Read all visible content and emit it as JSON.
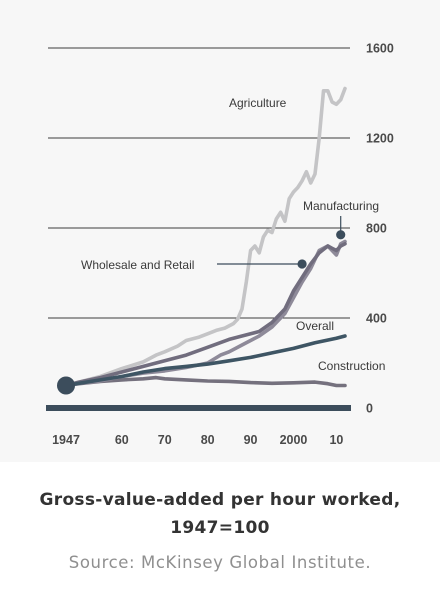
{
  "chart_data": {
    "type": "line",
    "xlim": [
      1947,
      2012
    ],
    "ylim": [
      0,
      1600
    ],
    "x_ticks": [
      {
        "value": 1947,
        "label": "1947"
      },
      {
        "value": 1960,
        "label": "60"
      },
      {
        "value": 1970,
        "label": "70"
      },
      {
        "value": 1980,
        "label": "80"
      },
      {
        "value": 1990,
        "label": "90"
      },
      {
        "value": 2000,
        "label": "2000"
      },
      {
        "value": 2010,
        "label": "10"
      }
    ],
    "y_ticks": [
      {
        "value": 0,
        "label": "0"
      },
      {
        "value": 400,
        "label": "400"
      },
      {
        "value": 800,
        "label": "800"
      },
      {
        "value": 1200,
        "label": "1200"
      },
      {
        "value": 1600,
        "label": "1600"
      }
    ],
    "grid": true,
    "series": [
      {
        "name": "Agriculture",
        "color": "#c4c4c6",
        "x": [
          1947,
          1950,
          1955,
          1960,
          1965,
          1968,
          1970,
          1973,
          1975,
          1978,
          1980,
          1982,
          1984,
          1986,
          1987,
          1988,
          1989,
          1990,
          1991,
          1992,
          1993,
          1994,
          1995,
          1996,
          1997,
          1998,
          1999,
          2000,
          2001,
          2002,
          2003,
          2004,
          2005,
          2006,
          2007,
          2008,
          2009,
          2010,
          2011,
          2012
        ],
        "y": [
          100,
          115,
          140,
          175,
          205,
          235,
          250,
          275,
          300,
          315,
          330,
          345,
          355,
          375,
          395,
          440,
          560,
          700,
          720,
          690,
          760,
          790,
          780,
          840,
          870,
          830,
          930,
          960,
          980,
          1010,
          1050,
          1000,
          1040,
          1200,
          1410,
          1410,
          1360,
          1350,
          1370,
          1420
        ]
      },
      {
        "name": "Manufacturing",
        "color": "#8e8a99",
        "x": [
          1947,
          1950,
          1955,
          1960,
          1965,
          1970,
          1975,
          1980,
          1983,
          1985,
          1988,
          1990,
          1992,
          1995,
          1998,
          2000,
          2002,
          2004,
          2006,
          2008,
          2010,
          2011,
          2012
        ],
        "y": [
          100,
          110,
          120,
          140,
          155,
          165,
          180,
          200,
          235,
          250,
          280,
          300,
          320,
          360,
          420,
          490,
          560,
          620,
          700,
          720,
          680,
          730,
          740
        ]
      },
      {
        "name": "Wholesale and Retail",
        "color": "#716d7e",
        "x": [
          1947,
          1950,
          1955,
          1960,
          1965,
          1970,
          1975,
          1980,
          1985,
          1990,
          1992,
          1995,
          1998,
          2000,
          2002,
          2004,
          2006,
          2008,
          2009,
          2010,
          2011,
          2012
        ],
        "y": [
          100,
          115,
          135,
          160,
          185,
          210,
          235,
          270,
          305,
          330,
          340,
          380,
          440,
          520,
          580,
          640,
          690,
          720,
          710,
          700,
          720,
          730
        ]
      },
      {
        "name": "Overall",
        "color": "#3e5564",
        "x": [
          1947,
          1950,
          1955,
          1960,
          1965,
          1970,
          1975,
          1980,
          1985,
          1990,
          1995,
          2000,
          2005,
          2010,
          2012
        ],
        "y": [
          100,
          110,
          125,
          140,
          160,
          175,
          185,
          195,
          210,
          225,
          245,
          265,
          290,
          310,
          320
        ]
      },
      {
        "name": "Construction",
        "color": "#75717e",
        "x": [
          1947,
          1950,
          1955,
          1960,
          1965,
          1968,
          1970,
          1975,
          1980,
          1985,
          1990,
          1995,
          2000,
          2005,
          2008,
          2010,
          2012
        ],
        "y": [
          100,
          108,
          118,
          125,
          130,
          135,
          130,
          125,
          120,
          118,
          113,
          110,
          112,
          115,
          108,
          100,
          100
        ]
      }
    ],
    "annotations": [
      {
        "text": "Agriculture",
        "series": "Agriculture"
      },
      {
        "text": "Manufacturing",
        "series": "Manufacturing",
        "marker": {
          "x": 2011,
          "y": 770
        }
      },
      {
        "text": "Wholesale and Retail",
        "series": "Wholesale and Retail",
        "marker": {
          "x": 2002,
          "y": 640
        }
      },
      {
        "text": "Overall",
        "series": "Overall"
      },
      {
        "text": "Construction",
        "series": "Construction"
      }
    ],
    "origin_marker": {
      "x": 1947,
      "y": 100
    }
  },
  "caption": {
    "title_line1": "Gross-value-added per hour worked,",
    "title_line2": "1947=100",
    "source": "Source: McKinsey Global Institute."
  }
}
